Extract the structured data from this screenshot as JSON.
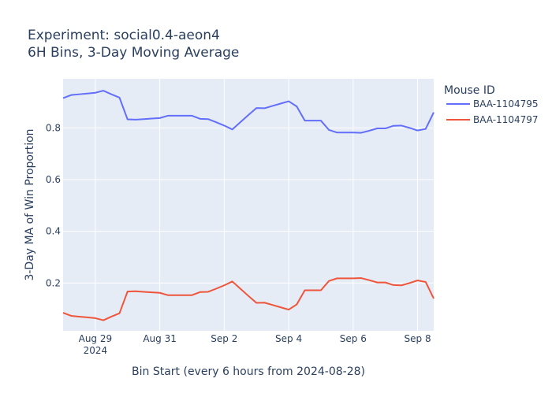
{
  "chart_data": {
    "type": "line",
    "title_line1": "Experiment: social0.4-aeon4",
    "title_line2": "6H Bins, 3-Day Moving Average",
    "xlabel": "Bin Start (every 6 hours from 2024-08-28)",
    "ylabel": "3-Day MA of Win Proportion",
    "xlim": [
      0.0,
      11.5
    ],
    "ylim": [
      0.015,
      0.99
    ],
    "x_ticks": [
      {
        "x": 1.0,
        "label": "Aug 29",
        "sub": "2024"
      },
      {
        "x": 3.0,
        "label": "Aug 31",
        "sub": ""
      },
      {
        "x": 5.0,
        "label": "Sep 2",
        "sub": ""
      },
      {
        "x": 7.0,
        "label": "Sep 4",
        "sub": ""
      },
      {
        "x": 9.0,
        "label": "Sep 6",
        "sub": ""
      },
      {
        "x": 11.0,
        "label": "Sep 8",
        "sub": ""
      }
    ],
    "y_ticks": [
      {
        "y": 0.2,
        "label": "0.2"
      },
      {
        "y": 0.4,
        "label": "0.4"
      },
      {
        "y": 0.6,
        "label": "0.6"
      },
      {
        "y": 0.8,
        "label": "0.8"
      }
    ],
    "grid": true,
    "legend": {
      "title": "Mouse ID",
      "placement": "right"
    },
    "series": [
      {
        "name": "BAA-1104795",
        "color": "#636efa",
        "points": [
          [
            0.0,
            0.915
          ],
          [
            0.25,
            0.927
          ],
          [
            0.5,
            0.93
          ],
          [
            0.75,
            0.933
          ],
          [
            1.0,
            0.936
          ],
          [
            1.25,
            0.944
          ],
          [
            1.5,
            0.93
          ],
          [
            1.75,
            0.917
          ],
          [
            2.0,
            0.833
          ],
          [
            2.25,
            0.832
          ],
          [
            2.5,
            0.834
          ],
          [
            2.75,
            0.836
          ],
          [
            3.0,
            0.838
          ],
          [
            3.25,
            0.847
          ],
          [
            3.5,
            0.847
          ],
          [
            3.75,
            0.847
          ],
          [
            4.0,
            0.847
          ],
          [
            4.25,
            0.835
          ],
          [
            4.5,
            0.834
          ],
          [
            4.75,
            0.822
          ],
          [
            5.0,
            0.809
          ],
          [
            5.25,
            0.794
          ],
          [
            5.5,
            0.822
          ],
          [
            5.75,
            0.85
          ],
          [
            6.0,
            0.877
          ],
          [
            6.25,
            0.876
          ],
          [
            6.5,
            0.885
          ],
          [
            6.75,
            0.894
          ],
          [
            7.0,
            0.903
          ],
          [
            7.25,
            0.883
          ],
          [
            7.5,
            0.828
          ],
          [
            7.75,
            0.828
          ],
          [
            8.0,
            0.828
          ],
          [
            8.25,
            0.792
          ],
          [
            8.5,
            0.782
          ],
          [
            8.75,
            0.782
          ],
          [
            9.0,
            0.782
          ],
          [
            9.25,
            0.781
          ],
          [
            9.5,
            0.789
          ],
          [
            9.75,
            0.798
          ],
          [
            10.0,
            0.798
          ],
          [
            10.25,
            0.808
          ],
          [
            10.5,
            0.809
          ],
          [
            10.75,
            0.8
          ],
          [
            11.0,
            0.79
          ],
          [
            11.25,
            0.796
          ],
          [
            11.5,
            0.86
          ]
        ]
      },
      {
        "name": "BAA-1104797",
        "color": "#ef553b",
        "points": [
          [
            0.0,
            0.085
          ],
          [
            0.25,
            0.073
          ],
          [
            0.5,
            0.07
          ],
          [
            0.75,
            0.067
          ],
          [
            1.0,
            0.064
          ],
          [
            1.25,
            0.056
          ],
          [
            1.5,
            0.07
          ],
          [
            1.75,
            0.083
          ],
          [
            2.0,
            0.167
          ],
          [
            2.25,
            0.168
          ],
          [
            2.5,
            0.166
          ],
          [
            2.75,
            0.164
          ],
          [
            3.0,
            0.162
          ],
          [
            3.25,
            0.153
          ],
          [
            3.5,
            0.153
          ],
          [
            3.75,
            0.153
          ],
          [
            4.0,
            0.153
          ],
          [
            4.25,
            0.165
          ],
          [
            4.5,
            0.166
          ],
          [
            4.75,
            0.178
          ],
          [
            5.0,
            0.191
          ],
          [
            5.25,
            0.206
          ],
          [
            5.5,
            0.178
          ],
          [
            5.75,
            0.15
          ],
          [
            6.0,
            0.123
          ],
          [
            6.25,
            0.124
          ],
          [
            6.5,
            0.115
          ],
          [
            6.75,
            0.106
          ],
          [
            7.0,
            0.097
          ],
          [
            7.25,
            0.117
          ],
          [
            7.5,
            0.172
          ],
          [
            7.75,
            0.172
          ],
          [
            8.0,
            0.172
          ],
          [
            8.25,
            0.208
          ],
          [
            8.5,
            0.218
          ],
          [
            8.75,
            0.218
          ],
          [
            9.0,
            0.218
          ],
          [
            9.25,
            0.219
          ],
          [
            9.5,
            0.211
          ],
          [
            9.75,
            0.202
          ],
          [
            10.0,
            0.202
          ],
          [
            10.25,
            0.192
          ],
          [
            10.5,
            0.191
          ],
          [
            10.75,
            0.2
          ],
          [
            11.0,
            0.21
          ],
          [
            11.25,
            0.204
          ],
          [
            11.5,
            0.14
          ]
        ]
      }
    ]
  }
}
